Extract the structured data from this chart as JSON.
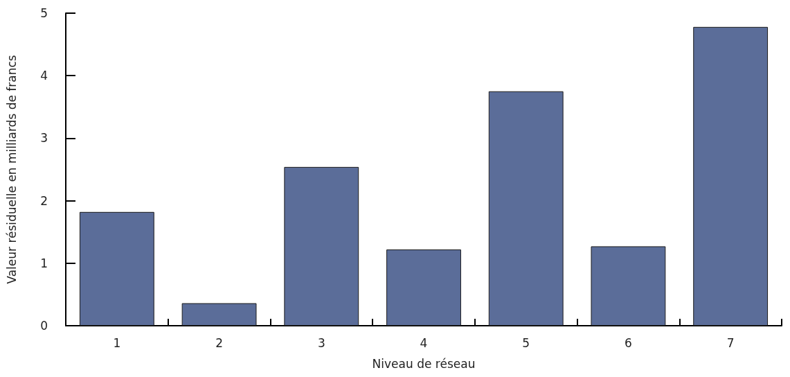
{
  "chart_data": {
    "type": "bar",
    "xlabel": "Niveau de réseau",
    "ylabel": "Valeur résiduelle en milliards de francs",
    "categories": [
      "1",
      "2",
      "3",
      "4",
      "5",
      "6",
      "7"
    ],
    "values": [
      1.82,
      0.36,
      2.54,
      1.22,
      3.75,
      1.27,
      4.78
    ],
    "color": "#5b6d99",
    "ylim": [
      0,
      5
    ],
    "yticks": [
      0,
      1,
      2,
      3,
      4,
      5
    ],
    "grid": false
  }
}
